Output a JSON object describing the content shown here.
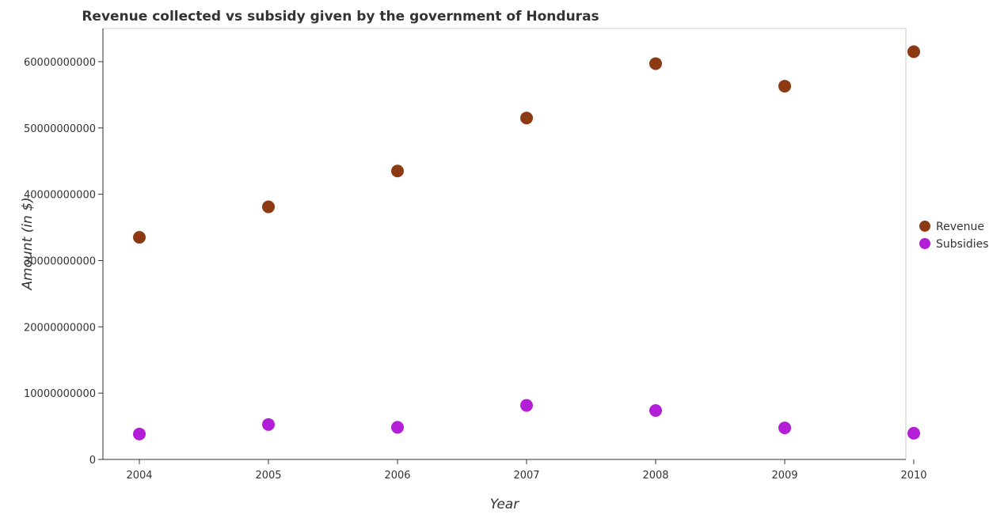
{
  "chart_data": {
    "type": "scatter",
    "title": "Revenue collected vs subsidy given by the government of Honduras",
    "xlabel": "Year",
    "ylabel": "Amount (in $)",
    "categories": [
      "2004",
      "2005",
      "2006",
      "2007",
      "2008",
      "2009",
      "2010"
    ],
    "y_ticks": [
      0,
      10000000000,
      20000000000,
      30000000000,
      40000000000,
      50000000000,
      60000000000
    ],
    "y_tick_labels": [
      "0",
      "10000000000",
      "20000000000",
      "30000000000",
      "40000000000",
      "50000000000",
      "60000000000"
    ],
    "ylim": [
      0,
      65000000000
    ],
    "grid": false,
    "legend_position": "right",
    "series": [
      {
        "name": "Revenue",
        "color": "#8b3a14",
        "values": [
          33500000000,
          38100000000,
          43500000000,
          51500000000,
          59700000000,
          56300000000,
          61500000000
        ]
      },
      {
        "name": "Subsidies",
        "color": "#b31fd6",
        "values": [
          3830000000,
          5270000000,
          4840000000,
          8150000000,
          7380000000,
          4760000000,
          3950000000
        ]
      }
    ]
  }
}
